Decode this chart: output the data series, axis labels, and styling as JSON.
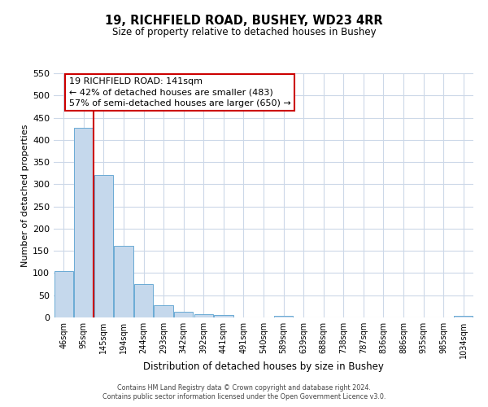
{
  "title_line1": "19, RICHFIELD ROAD, BUSHEY, WD23 4RR",
  "title_line2": "Size of property relative to detached houses in Bushey",
  "xlabel": "Distribution of detached houses by size in Bushey",
  "ylabel": "Number of detached properties",
  "bin_labels": [
    "46sqm",
    "95sqm",
    "145sqm",
    "194sqm",
    "244sqm",
    "293sqm",
    "342sqm",
    "392sqm",
    "441sqm",
    "491sqm",
    "540sqm",
    "589sqm",
    "639sqm",
    "688sqm",
    "738sqm",
    "787sqm",
    "836sqm",
    "886sqm",
    "935sqm",
    "985sqm",
    "1034sqm"
  ],
  "bar_heights": [
    105,
    428,
    321,
    162,
    75,
    27,
    13,
    7,
    5,
    0,
    0,
    4,
    0,
    0,
    0,
    0,
    0,
    0,
    0,
    0,
    4
  ],
  "bar_color": "#c5d8ec",
  "bar_edgecolor": "#6aaad4",
  "vline_color": "#cc0000",
  "ylim": [
    0,
    550
  ],
  "yticks": [
    0,
    50,
    100,
    150,
    200,
    250,
    300,
    350,
    400,
    450,
    500,
    550
  ],
  "annotation_title": "19 RICHFIELD ROAD: 141sqm",
  "annotation_line1": "← 42% of detached houses are smaller (483)",
  "annotation_line2": "57% of semi-detached houses are larger (650) →",
  "annotation_box_color": "#ffffff",
  "annotation_box_edgecolor": "#cc0000",
  "footer_line1": "Contains HM Land Registry data © Crown copyright and database right 2024.",
  "footer_line2": "Contains public sector information licensed under the Open Government Licence v3.0.",
  "background_color": "#ffffff",
  "grid_color": "#ccd8e8"
}
